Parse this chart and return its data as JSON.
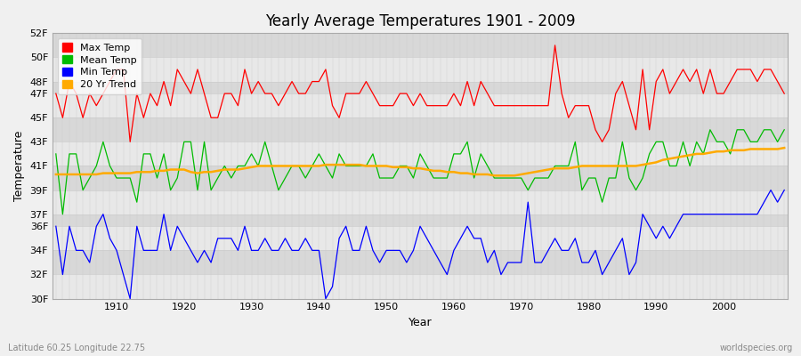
{
  "years": [
    1901,
    1902,
    1903,
    1904,
    1905,
    1906,
    1907,
    1908,
    1909,
    1910,
    1911,
    1912,
    1913,
    1914,
    1915,
    1916,
    1917,
    1918,
    1919,
    1920,
    1921,
    1922,
    1923,
    1924,
    1925,
    1926,
    1927,
    1928,
    1929,
    1930,
    1931,
    1932,
    1933,
    1934,
    1935,
    1936,
    1937,
    1938,
    1939,
    1940,
    1941,
    1942,
    1943,
    1944,
    1945,
    1946,
    1947,
    1948,
    1949,
    1950,
    1951,
    1952,
    1953,
    1954,
    1955,
    1956,
    1957,
    1958,
    1959,
    1960,
    1961,
    1962,
    1963,
    1964,
    1965,
    1966,
    1967,
    1968,
    1969,
    1970,
    1971,
    1972,
    1973,
    1974,
    1975,
    1976,
    1977,
    1978,
    1979,
    1980,
    1981,
    1982,
    1983,
    1984,
    1985,
    1986,
    1987,
    1988,
    1989,
    1990,
    1991,
    1992,
    1993,
    1994,
    1995,
    1996,
    1997,
    1998,
    1999,
    2000,
    2001,
    2002,
    2003,
    2004,
    2005,
    2006,
    2007,
    2008,
    2009
  ],
  "max_temp": [
    47,
    45,
    48,
    47,
    45,
    47,
    46,
    47,
    48,
    49,
    49,
    43,
    47,
    45,
    47,
    46,
    48,
    46,
    49,
    48,
    47,
    49,
    47,
    45,
    45,
    47,
    47,
    46,
    49,
    47,
    48,
    47,
    47,
    46,
    47,
    48,
    47,
    47,
    48,
    48,
    49,
    46,
    45,
    47,
    47,
    47,
    48,
    47,
    46,
    46,
    46,
    47,
    47,
    46,
    47,
    46,
    46,
    46,
    46,
    47,
    46,
    48,
    46,
    48,
    47,
    46,
    46,
    46,
    46,
    46,
    46,
    46,
    46,
    46,
    51,
    47,
    45,
    46,
    46,
    46,
    44,
    43,
    44,
    47,
    48,
    46,
    44,
    49,
    44,
    48,
    49,
    47,
    48,
    49,
    48,
    49,
    47,
    49,
    47,
    47,
    48,
    49,
    49,
    49,
    48,
    49,
    49,
    48,
    47
  ],
  "mean_temp": [
    42,
    37,
    42,
    42,
    39,
    40,
    41,
    43,
    41,
    40,
    40,
    40,
    38,
    42,
    42,
    40,
    42,
    39,
    40,
    43,
    43,
    39,
    43,
    39,
    40,
    41,
    40,
    41,
    41,
    42,
    41,
    43,
    41,
    39,
    40,
    41,
    41,
    40,
    41,
    42,
    41,
    40,
    42,
    41,
    41,
    41,
    41,
    42,
    40,
    40,
    40,
    41,
    41,
    40,
    42,
    41,
    40,
    40,
    40,
    42,
    42,
    43,
    40,
    42,
    41,
    40,
    40,
    40,
    40,
    40,
    39,
    40,
    40,
    40,
    41,
    41,
    41,
    43,
    39,
    40,
    40,
    38,
    40,
    40,
    43,
    40,
    39,
    40,
    42,
    43,
    43,
    41,
    41,
    43,
    41,
    43,
    42,
    44,
    43,
    43,
    42,
    44,
    44,
    43,
    43,
    44,
    44,
    43,
    44
  ],
  "min_temp": [
    36,
    32,
    36,
    34,
    34,
    33,
    36,
    37,
    35,
    34,
    32,
    30,
    36,
    34,
    34,
    34,
    37,
    34,
    36,
    35,
    34,
    33,
    34,
    33,
    35,
    35,
    35,
    34,
    36,
    34,
    34,
    35,
    34,
    34,
    35,
    34,
    34,
    35,
    34,
    34,
    30,
    31,
    35,
    36,
    34,
    34,
    36,
    34,
    33,
    34,
    34,
    34,
    33,
    34,
    36,
    35,
    34,
    33,
    32,
    34,
    35,
    36,
    35,
    35,
    33,
    34,
    32,
    33,
    33,
    33,
    38,
    33,
    33,
    34,
    35,
    34,
    34,
    35,
    33,
    33,
    34,
    32,
    33,
    34,
    35,
    32,
    33,
    37,
    36,
    35,
    36,
    35,
    36,
    37,
    37,
    37,
    37,
    37,
    37,
    37,
    37,
    37,
    37,
    37,
    37,
    38,
    39,
    38,
    39
  ],
  "trend": [
    40.3,
    40.3,
    40.3,
    40.3,
    40.3,
    40.3,
    40.3,
    40.4,
    40.4,
    40.4,
    40.4,
    40.4,
    40.5,
    40.5,
    40.5,
    40.6,
    40.6,
    40.7,
    40.7,
    40.7,
    40.5,
    40.4,
    40.5,
    40.5,
    40.6,
    40.7,
    40.7,
    40.7,
    40.8,
    40.9,
    41.0,
    41.0,
    41.0,
    41.0,
    41.0,
    41.0,
    41.0,
    41.0,
    41.0,
    41.0,
    41.1,
    41.1,
    41.1,
    41.1,
    41.1,
    41.1,
    41.0,
    41.0,
    41.0,
    41.0,
    40.9,
    40.9,
    40.9,
    40.8,
    40.8,
    40.7,
    40.6,
    40.6,
    40.5,
    40.5,
    40.4,
    40.4,
    40.3,
    40.3,
    40.3,
    40.2,
    40.2,
    40.2,
    40.2,
    40.3,
    40.4,
    40.5,
    40.6,
    40.7,
    40.8,
    40.8,
    40.8,
    40.9,
    41.0,
    41.0,
    41.0,
    41.0,
    41.0,
    41.0,
    41.0,
    41.0,
    41.0,
    41.1,
    41.2,
    41.3,
    41.5,
    41.6,
    41.7,
    41.8,
    41.9,
    42.0,
    42.0,
    42.1,
    42.2,
    42.2,
    42.3,
    42.3,
    42.3,
    42.4,
    42.4,
    42.4,
    42.4,
    42.4,
    42.5
  ],
  "title": "Yearly Average Temperatures 1901 - 2009",
  "xlabel": "Year",
  "ylabel": "Temperature",
  "ylim_min": 30,
  "ylim_max": 52,
  "yticks": [
    30,
    32,
    34,
    36,
    37,
    39,
    41,
    43,
    45,
    47,
    48,
    50,
    52
  ],
  "ytick_labels": [
    "30F",
    "32F",
    "34F",
    "36F",
    "37F",
    "39F",
    "41F",
    "43F",
    "45F",
    "47F",
    "48F",
    "50F",
    "52F"
  ],
  "band_colors": [
    "#e8e8e8",
    "#d8d8d8"
  ],
  "max_color": "#ff0000",
  "mean_color": "#00bb00",
  "min_color": "#0000ff",
  "trend_color": "#ffaa00",
  "bg_color": "#f0f0f0",
  "grid_color": "#cccccc",
  "vgrid_color": "#cccccc",
  "footnote_left": "Latitude 60.25 Longitude 22.75",
  "footnote_right": "worldspecies.org",
  "legend_labels": [
    "Max Temp",
    "Mean Temp",
    "Min Temp",
    "20 Yr Trend"
  ],
  "xticks": [
    1910,
    1920,
    1930,
    1940,
    1950,
    1960,
    1970,
    1980,
    1990,
    2000
  ]
}
